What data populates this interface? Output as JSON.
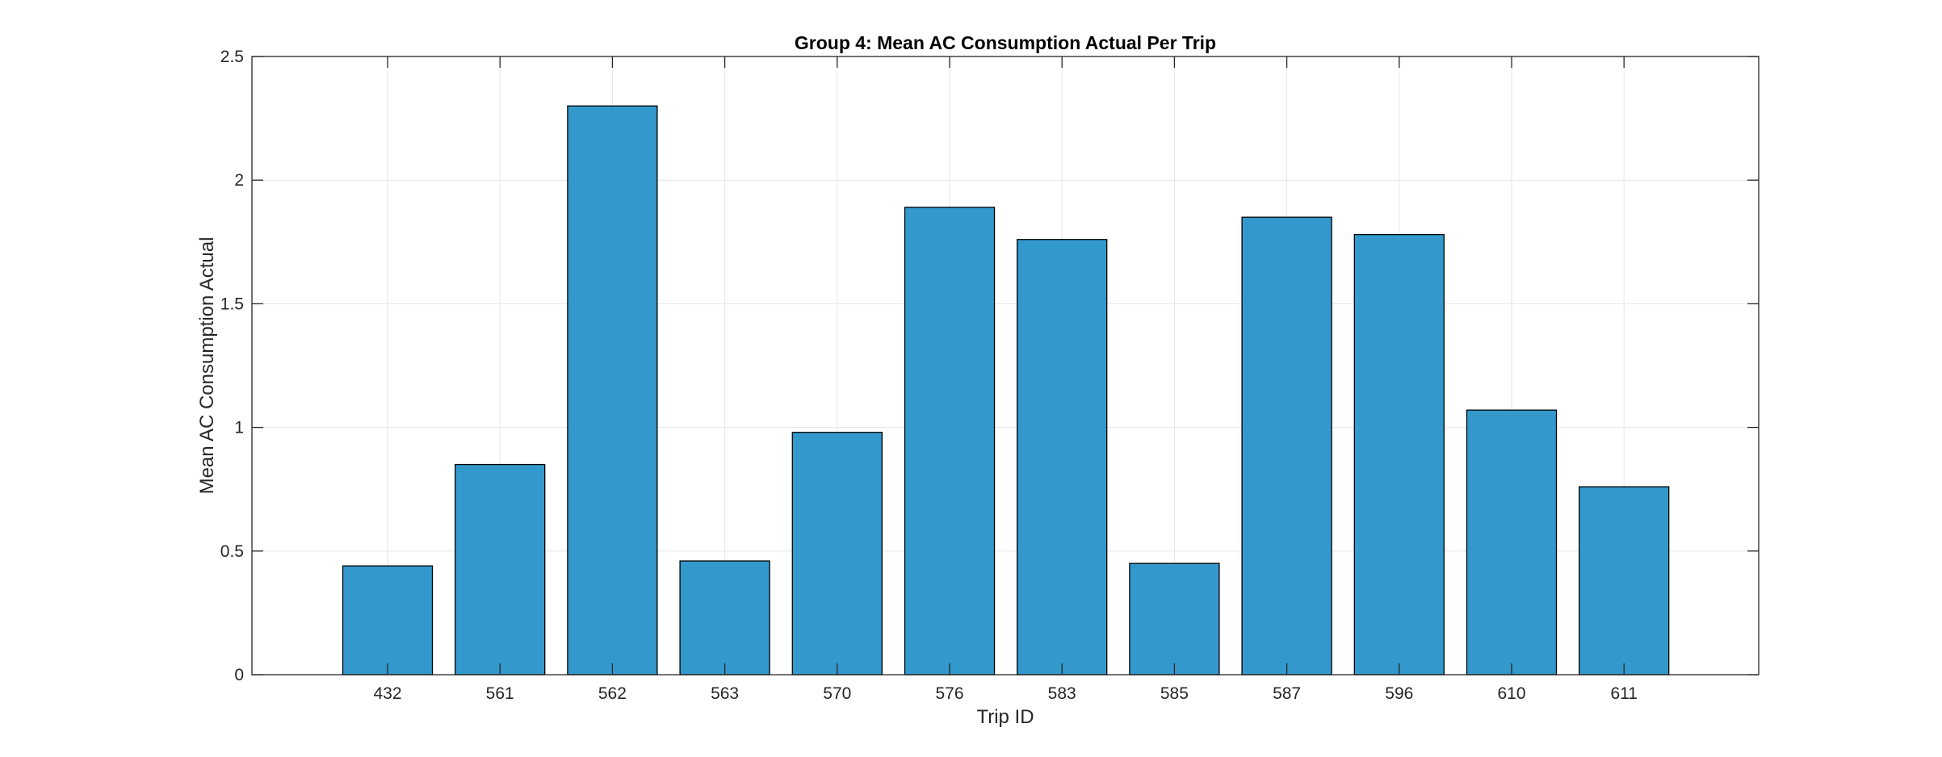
{
  "chart_data": {
    "type": "bar",
    "title": "Group 4: Mean AC Consumption Actual Per Trip",
    "xlabel": "Trip ID",
    "ylabel": "Mean AC Consumption Actual",
    "categories": [
      "432",
      "561",
      "562",
      "563",
      "570",
      "576",
      "583",
      "585",
      "587",
      "596",
      "610",
      "611"
    ],
    "values": [
      0.44,
      0.85,
      2.3,
      0.46,
      0.98,
      1.89,
      1.76,
      0.45,
      1.85,
      1.78,
      1.07,
      0.76
    ],
    "ylim": [
      0,
      2.5
    ],
    "yticks": [
      0,
      0.5,
      1,
      1.5,
      2,
      2.5
    ],
    "ytick_labels": [
      "0",
      "0.5",
      "1",
      "1.5",
      "2",
      "2.5"
    ],
    "grid": true,
    "bar_color": "#3399cc",
    "bar_edge_color": "#000000",
    "grid_color": "#e6e6e6",
    "axis_color": "#262626"
  }
}
